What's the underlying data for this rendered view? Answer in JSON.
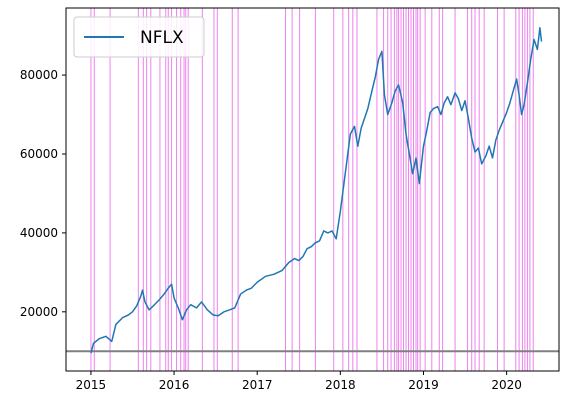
{
  "chart_data": {
    "type": "line",
    "title": "",
    "xlabel": "",
    "ylabel": "",
    "x_range": [
      2014.7,
      2020.63
    ],
    "ylim": [
      5000,
      97000
    ],
    "x_ticks": [
      {
        "value": 2015,
        "label": "2015"
      },
      {
        "value": 2016,
        "label": "2016"
      },
      {
        "value": 2017,
        "label": "2017"
      },
      {
        "value": 2018,
        "label": "2018"
      },
      {
        "value": 2019,
        "label": "2019"
      },
      {
        "value": 2020,
        "label": "2020"
      }
    ],
    "y_ticks": [
      {
        "value": 20000,
        "label": "20000"
      },
      {
        "value": 40000,
        "label": "40000"
      },
      {
        "value": 60000,
        "label": "60000"
      },
      {
        "value": 80000,
        "label": "80000"
      }
    ],
    "grid": false,
    "legend": {
      "position": "top-left",
      "entries": [
        "NFLX"
      ]
    },
    "horizontal_reference": {
      "y": 10000,
      "color": "#808080"
    },
    "series": [
      {
        "name": "NFLX",
        "color": "#1f77b4",
        "points": [
          [
            2015.0,
            9500
          ],
          [
            2015.03,
            12000
          ],
          [
            2015.1,
            13200
          ],
          [
            2015.18,
            13800
          ],
          [
            2015.25,
            12500
          ],
          [
            2015.3,
            16800
          ],
          [
            2015.38,
            18500
          ],
          [
            2015.45,
            19200
          ],
          [
            2015.5,
            20000
          ],
          [
            2015.55,
            21500
          ],
          [
            2015.6,
            24000
          ],
          [
            2015.62,
            25500
          ],
          [
            2015.65,
            22500
          ],
          [
            2015.7,
            20500
          ],
          [
            2015.75,
            21500
          ],
          [
            2015.82,
            23000
          ],
          [
            2015.88,
            24500
          ],
          [
            2015.93,
            26000
          ],
          [
            2015.97,
            27000
          ],
          [
            2016.0,
            23500
          ],
          [
            2016.05,
            21000
          ],
          [
            2016.1,
            18000
          ],
          [
            2016.15,
            20500
          ],
          [
            2016.2,
            21800
          ],
          [
            2016.27,
            21000
          ],
          [
            2016.33,
            22500
          ],
          [
            2016.4,
            20500
          ],
          [
            2016.47,
            19200
          ],
          [
            2016.53,
            19000
          ],
          [
            2016.6,
            20000
          ],
          [
            2016.67,
            20500
          ],
          [
            2016.73,
            21000
          ],
          [
            2016.8,
            24500
          ],
          [
            2016.87,
            25500
          ],
          [
            2016.93,
            26000
          ],
          [
            2017.0,
            27500
          ],
          [
            2017.1,
            29000
          ],
          [
            2017.2,
            29500
          ],
          [
            2017.3,
            30500
          ],
          [
            2017.38,
            32500
          ],
          [
            2017.45,
            33500
          ],
          [
            2017.5,
            33000
          ],
          [
            2017.55,
            34000
          ],
          [
            2017.6,
            36000
          ],
          [
            2017.65,
            36500
          ],
          [
            2017.7,
            37500
          ],
          [
            2017.75,
            38000
          ],
          [
            2017.8,
            40500
          ],
          [
            2017.85,
            40000
          ],
          [
            2017.9,
            40500
          ],
          [
            2017.95,
            38500
          ],
          [
            2018.0,
            45500
          ],
          [
            2018.04,
            52000
          ],
          [
            2018.08,
            58500
          ],
          [
            2018.12,
            65000
          ],
          [
            2018.17,
            67000
          ],
          [
            2018.21,
            62000
          ],
          [
            2018.25,
            66500
          ],
          [
            2018.29,
            69000
          ],
          [
            2018.33,
            71500
          ],
          [
            2018.38,
            76000
          ],
          [
            2018.42,
            79500
          ],
          [
            2018.46,
            84000
          ],
          [
            2018.5,
            86000
          ],
          [
            2018.53,
            75000
          ],
          [
            2018.57,
            70000
          ],
          [
            2018.62,
            73000
          ],
          [
            2018.66,
            76000
          ],
          [
            2018.7,
            77500
          ],
          [
            2018.75,
            73000
          ],
          [
            2018.79,
            65000
          ],
          [
            2018.83,
            60000
          ],
          [
            2018.87,
            55000
          ],
          [
            2018.91,
            59000
          ],
          [
            2018.95,
            52500
          ],
          [
            2019.0,
            62000
          ],
          [
            2019.04,
            66000
          ],
          [
            2019.08,
            70500
          ],
          [
            2019.12,
            71500
          ],
          [
            2019.17,
            72000
          ],
          [
            2019.21,
            70000
          ],
          [
            2019.25,
            73000
          ],
          [
            2019.29,
            74500
          ],
          [
            2019.33,
            72500
          ],
          [
            2019.38,
            75500
          ],
          [
            2019.42,
            74000
          ],
          [
            2019.46,
            71000
          ],
          [
            2019.5,
            73500
          ],
          [
            2019.54,
            69000
          ],
          [
            2019.58,
            64000
          ],
          [
            2019.62,
            60500
          ],
          [
            2019.66,
            61500
          ],
          [
            2019.7,
            57500
          ],
          [
            2019.75,
            59500
          ],
          [
            2019.79,
            62000
          ],
          [
            2019.83,
            59000
          ],
          [
            2019.87,
            63500
          ],
          [
            2019.91,
            66000
          ],
          [
            2019.95,
            68000
          ],
          [
            2020.0,
            70500
          ],
          [
            2020.04,
            73000
          ],
          [
            2020.08,
            76000
          ],
          [
            2020.12,
            79000
          ],
          [
            2020.15,
            75000
          ],
          [
            2020.18,
            70000
          ],
          [
            2020.21,
            72500
          ],
          [
            2020.25,
            78000
          ],
          [
            2020.29,
            84000
          ],
          [
            2020.33,
            89000
          ],
          [
            2020.37,
            86500
          ],
          [
            2020.4,
            92000
          ],
          [
            2020.42,
            88500
          ]
        ]
      }
    ],
    "vertical_markers": {
      "color": "#ee82ee",
      "x": [
        2015.0,
        2015.04,
        2015.23,
        2015.57,
        2015.63,
        2015.67,
        2015.72,
        2015.83,
        2015.9,
        2015.93,
        2015.97,
        2016.03,
        2016.08,
        2016.12,
        2016.14,
        2016.17,
        2016.34,
        2016.48,
        2016.52,
        2016.7,
        2016.77,
        2017.34,
        2017.42,
        2017.51,
        2017.7,
        2017.92,
        2018.03,
        2018.1,
        2018.15,
        2018.2,
        2018.44,
        2018.52,
        2018.57,
        2018.61,
        2018.65,
        2018.68,
        2018.7,
        2018.73,
        2018.76,
        2018.79,
        2018.82,
        2018.85,
        2018.88,
        2018.91,
        2018.93,
        2018.96,
        2019.02,
        2019.1,
        2019.19,
        2019.23,
        2019.38,
        2019.53,
        2019.58,
        2019.62,
        2019.67,
        2019.73,
        2019.89,
        2019.97,
        2020.11,
        2020.15,
        2020.19,
        2020.22,
        2020.25,
        2020.28,
        2020.32
      ]
    }
  }
}
